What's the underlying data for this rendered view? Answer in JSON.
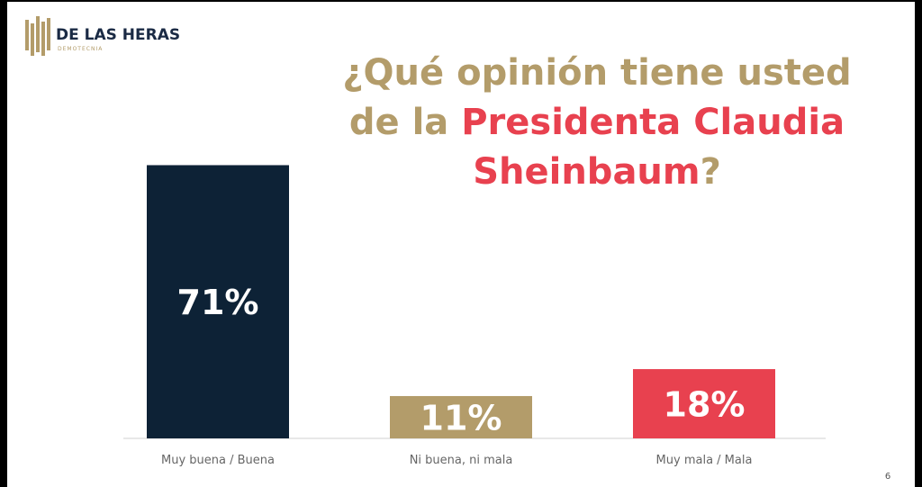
{
  "logo": {
    "name": "DE LAS HERAS",
    "subtitle": "DEMOTECNIA"
  },
  "chart_data": {
    "type": "bar",
    "title": [
      "¿Qué opinión tiene usted",
      "de la",
      "Presidenta Claudia",
      "Sheinbaum",
      "?"
    ],
    "categories": [
      "Muy buena / Buena",
      "Ni buena, ni mala",
      "Muy mala / Mala"
    ],
    "values": [
      71,
      11,
      18
    ],
    "value_labels": [
      "71%",
      "11%",
      "18%"
    ],
    "colors": [
      "#0d2236",
      "#b39c6a",
      "#e8414f"
    ],
    "ylim": [
      0,
      80
    ]
  },
  "page_number": "6"
}
